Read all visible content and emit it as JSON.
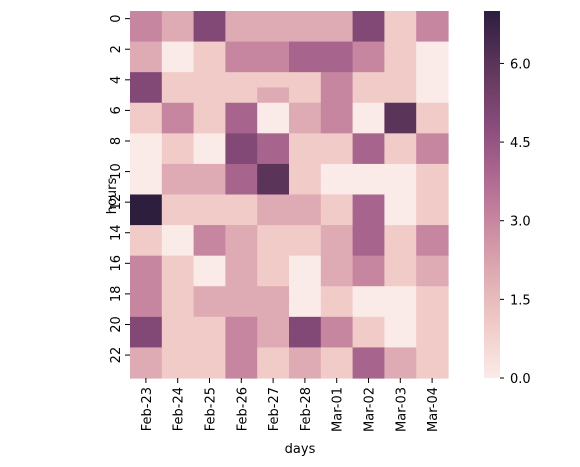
{
  "chart_data": {
    "type": "heatmap",
    "title": "",
    "xlabel": "days",
    "ylabel": "hours",
    "x": [
      "Feb-23",
      "Feb-24",
      "Feb-25",
      "Feb-26",
      "Feb-27",
      "Feb-28",
      "Mar-01",
      "Mar-02",
      "Mar-03",
      "Mar-04"
    ],
    "y": [
      0,
      1,
      2,
      3,
      4,
      5,
      6,
      7,
      8,
      9,
      10,
      11,
      12,
      13,
      14,
      15,
      16,
      17,
      18,
      19,
      20,
      21,
      22,
      23
    ],
    "y_tick_labels": [
      "0",
      "2",
      "4",
      "6",
      "8",
      "10",
      "12",
      "14",
      "16",
      "18",
      "20",
      "22"
    ],
    "values": [
      [
        3,
        2,
        5,
        2,
        2,
        2,
        2,
        5,
        1,
        3
      ],
      [
        3,
        2,
        5,
        2,
        2,
        2,
        2,
        5,
        1,
        3
      ],
      [
        2,
        0,
        1,
        3,
        3,
        4,
        4,
        3,
        1,
        0
      ],
      [
        2,
        0,
        1,
        3,
        3,
        4,
        4,
        3,
        1,
        0
      ],
      [
        5,
        1,
        1,
        1,
        1,
        1,
        3,
        1,
        1,
        0
      ],
      [
        5,
        1,
        1,
        1,
        2,
        1,
        3,
        1,
        1,
        0
      ],
      [
        1,
        3,
        1,
        4,
        0,
        2,
        3,
        0,
        6,
        1
      ],
      [
        1,
        3,
        1,
        4,
        0,
        2,
        3,
        0,
        6,
        1
      ],
      [
        0,
        1,
        0,
        5,
        4,
        1,
        1,
        4,
        1,
        3
      ],
      [
        0,
        1,
        0,
        5,
        4,
        1,
        1,
        4,
        1,
        3
      ],
      [
        0,
        2,
        2,
        4,
        6,
        1,
        0,
        0,
        0,
        1
      ],
      [
        0,
        2,
        2,
        4,
        6,
        1,
        0,
        0,
        0,
        1
      ],
      [
        7,
        1,
        1,
        1,
        2,
        2,
        1,
        4,
        0,
        1
      ],
      [
        7,
        1,
        1,
        1,
        2,
        2,
        1,
        4,
        0,
        1
      ],
      [
        1,
        0,
        3,
        2,
        1,
        1,
        2,
        4,
        1,
        3
      ],
      [
        1,
        0,
        3,
        2,
        1,
        1,
        2,
        4,
        1,
        3
      ],
      [
        3,
        1,
        0,
        2,
        1,
        0,
        2,
        3,
        1,
        2
      ],
      [
        3,
        1,
        0,
        2,
        1,
        0,
        2,
        3,
        1,
        2
      ],
      [
        3,
        1,
        2,
        2,
        2,
        0,
        1,
        0,
        0,
        1
      ],
      [
        3,
        1,
        2,
        2,
        2,
        0,
        1,
        0,
        0,
        1
      ],
      [
        5,
        1,
        1,
        3,
        2,
        5,
        3,
        1,
        0,
        1
      ],
      [
        5,
        1,
        1,
        3,
        2,
        5,
        3,
        1,
        0,
        1
      ],
      [
        2,
        1,
        1,
        3,
        1,
        2,
        1,
        4,
        2,
        1
      ],
      [
        2,
        1,
        1,
        3,
        1,
        2,
        1,
        4,
        2,
        1
      ]
    ],
    "colorbar": {
      "min": 0,
      "max": 7,
      "ticks": [
        0.0,
        1.5,
        3.0,
        4.5,
        6.0
      ],
      "tick_labels": [
        "0.0",
        "1.5",
        "3.0",
        "4.5",
        "6.0"
      ],
      "palette": [
        "#faebe8",
        "#eec6c3",
        "#d79fac",
        "#b97497",
        "#8f507f",
        "#61385e",
        "#2d1e3e"
      ]
    }
  }
}
